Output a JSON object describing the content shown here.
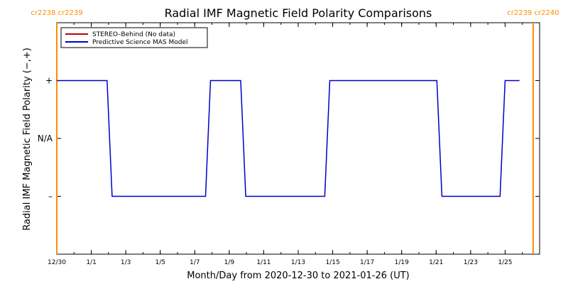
{
  "chart_data": {
    "type": "line",
    "title": "Radial IMF Magnetic Field Polarity Comparisons",
    "xlabel": "Month/Day from 2020-12-30 to 2021-01-26 (UT)",
    "ylabel": "Radial IMF Magnetic Field Polarity (−,+)",
    "x_start": "2020-12-30",
    "x_end": "2021-01-27",
    "ylim": [
      -2,
      2
    ],
    "x_ticks": [
      {
        "date": "2020-12-30",
        "label": "12/30"
      },
      {
        "date": "2021-01-01",
        "label": "1/1"
      },
      {
        "date": "2021-01-03",
        "label": "1/3"
      },
      {
        "date": "2021-01-05",
        "label": "1/5"
      },
      {
        "date": "2021-01-07",
        "label": "1/7"
      },
      {
        "date": "2021-01-09",
        "label": "1/9"
      },
      {
        "date": "2021-01-11",
        "label": "1/11"
      },
      {
        "date": "2021-01-13",
        "label": "1/13"
      },
      {
        "date": "2021-01-15",
        "label": "1/15"
      },
      {
        "date": "2021-01-17",
        "label": "1/17"
      },
      {
        "date": "2021-01-19",
        "label": "1/19"
      },
      {
        "date": "2021-01-21",
        "label": "1/21"
      },
      {
        "date": "2021-01-23",
        "label": "1/23"
      },
      {
        "date": "2021-01-25",
        "label": "1/25"
      }
    ],
    "y_ticks": [
      {
        "value": 1,
        "label": "+"
      },
      {
        "value": 0,
        "label": "N/A"
      },
      {
        "value": -1,
        "label": "–"
      }
    ],
    "legend": {
      "placement": "top-left",
      "entries": [
        {
          "name": "STEREO–Behind (No data)",
          "color": "#c00000"
        },
        {
          "name": "Predictive Science MAS Model",
          "color": "#0000cc"
        }
      ]
    },
    "series": [
      {
        "name": "Predictive Science MAS Model",
        "color": "#0000cc",
        "points": [
          [
            "2020-12-30T00:00",
            1
          ],
          [
            "2021-01-01T22:00",
            1
          ],
          [
            "2021-01-02T05:00",
            -1
          ],
          [
            "2021-01-07T15:00",
            -1
          ],
          [
            "2021-01-07T22:00",
            1
          ],
          [
            "2021-01-09T16:00",
            1
          ],
          [
            "2021-01-09T23:00",
            -1
          ],
          [
            "2021-01-14T13:00",
            -1
          ],
          [
            "2021-01-14T20:00",
            1
          ],
          [
            "2021-01-21T01:00",
            1
          ],
          [
            "2021-01-21T08:00",
            -1
          ],
          [
            "2021-01-24T17:00",
            -1
          ],
          [
            "2021-01-25T00:00",
            1
          ],
          [
            "2021-01-25T20:00",
            1
          ]
        ]
      }
    ],
    "carrington_markers": [
      {
        "date": "2020-12-30T00:00",
        "label_left": "cr2238",
        "label_right": "cr2239",
        "color": "#ff8c00"
      },
      {
        "date": "2021-01-26T15:00",
        "label_left": "cr2239",
        "label_right": "cr2240",
        "color": "#ff8c00"
      }
    ]
  }
}
